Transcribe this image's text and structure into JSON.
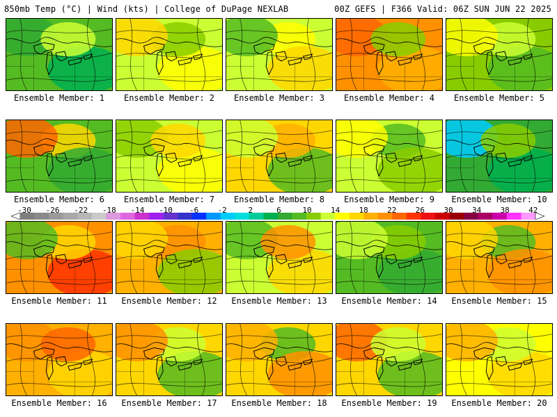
{
  "header": {
    "left": "850mb Temp (°C) | Wind (kts) | College of DuPage NEXLAB",
    "right": "00Z GEFS | F366 Valid: 06Z SUN JUN 22 2025"
  },
  "colorbar": {
    "ticks": [
      "-30",
      "-26",
      "-22",
      "-18",
      "-14",
      "-10",
      "-6",
      "-2",
      "2",
      "6",
      "10",
      "14",
      "18",
      "22",
      "26",
      "30",
      "34",
      "38",
      "42"
    ],
    "colors": [
      "#7f7f7f",
      "#8a8a8a",
      "#9a9a9a",
      "#a8a8a8",
      "#b7b7b7",
      "#c9c9c9",
      "#dd99dd",
      "#e066e0",
      "#cc33cc",
      "#a020f0",
      "#6633cc",
      "#3333cc",
      "#0033ff",
      "#0099ff",
      "#00ccff",
      "#00dddd",
      "#00cc99",
      "#00b050",
      "#33aa33",
      "#55bb22",
      "#88cc00",
      "#ccff33",
      "#ffff00",
      "#ffd700",
      "#ffb000",
      "#ff9000",
      "#ff6600",
      "#ff3300",
      "#ee1111",
      "#cc0000",
      "#990000",
      "#880044",
      "#aa0066",
      "#cc00aa",
      "#ff33ff",
      "#ff99ff"
    ]
  },
  "members": [
    {
      "label": "Ensemble Member: 1",
      "base": "#55bb22",
      "blobs": [
        "#33aa33",
        "#00b050",
        "#ccff33"
      ]
    },
    {
      "label": "Ensemble Member: 2",
      "base": "#ccff33",
      "blobs": [
        "#ffff00",
        "#88cc00",
        "#ffd700"
      ]
    },
    {
      "label": "Ensemble Member: 3",
      "base": "#ccff33",
      "blobs": [
        "#ffff00",
        "#55bb22",
        "#ffd700"
      ]
    },
    {
      "label": "Ensemble Member: 4",
      "base": "#ff9000",
      "blobs": [
        "#ff6600",
        "#ffb000",
        "#88cc00"
      ]
    },
    {
      "label": "Ensemble Member: 5",
      "base": "#88cc00",
      "blobs": [
        "#55bb22",
        "#ccff33",
        "#ffff00"
      ]
    },
    {
      "label": "Ensemble Member: 6",
      "base": "#55bb22",
      "blobs": [
        "#ffd700",
        "#ff6600",
        "#33aa33"
      ]
    },
    {
      "label": "Ensemble Member: 7",
      "base": "#ccff33",
      "blobs": [
        "#88cc00",
        "#ffff00",
        "#ffd700"
      ]
    },
    {
      "label": "Ensemble Member: 8",
      "base": "#ffd700",
      "blobs": [
        "#55bb22",
        "#ffb000",
        "#ccff33"
      ]
    },
    {
      "label": "Ensemble Member: 9",
      "base": "#ccff33",
      "blobs": [
        "#55bb22",
        "#ffff00",
        "#88cc00"
      ]
    },
    {
      "label": "Ensemble Member: 10",
      "base": "#33aa33",
      "blobs": [
        "#00ccff",
        "#00b050",
        "#88cc00"
      ]
    },
    {
      "label": "Ensemble Member: 11",
      "base": "#ff9000",
      "blobs": [
        "#ff3300",
        "#ffd700",
        "#55bb22"
      ]
    },
    {
      "label": "Ensemble Member: 12",
      "base": "#ffb000",
      "blobs": [
        "#ff9000",
        "#ffd700",
        "#88cc00"
      ]
    },
    {
      "label": "Ensemble Member: 13",
      "base": "#ccff33",
      "blobs": [
        "#55bb22",
        "#ffd700",
        "#ff9000"
      ]
    },
    {
      "label": "Ensemble Member: 14",
      "base": "#55bb22",
      "blobs": [
        "#33aa33",
        "#88cc00",
        "#ccff33"
      ]
    },
    {
      "label": "Ensemble Member: 15",
      "base": "#ffb000",
      "blobs": [
        "#55bb22",
        "#ffd700",
        "#ff9000"
      ]
    },
    {
      "label": "Ensemble Member: 16",
      "base": "#ffb000",
      "blobs": [
        "#ff9000",
        "#ffd700",
        "#ff6600"
      ]
    },
    {
      "label": "Ensemble Member: 17",
      "base": "#ffd700",
      "blobs": [
        "#55bb22",
        "#ccff33",
        "#ff9000"
      ]
    },
    {
      "label": "Ensemble Member: 18",
      "base": "#ffd700",
      "blobs": [
        "#55bb22",
        "#ffb000",
        "#ff9000"
      ]
    },
    {
      "label": "Ensemble Member: 19",
      "base": "#ffd700",
      "blobs": [
        "#ff6600",
        "#55bb22",
        "#ccff33"
      ]
    },
    {
      "label": "Ensemble Member: 20",
      "base": "#ffff00",
      "blobs": [
        "#ffd700",
        "#ccff33",
        "#ffb000"
      ]
    }
  ]
}
